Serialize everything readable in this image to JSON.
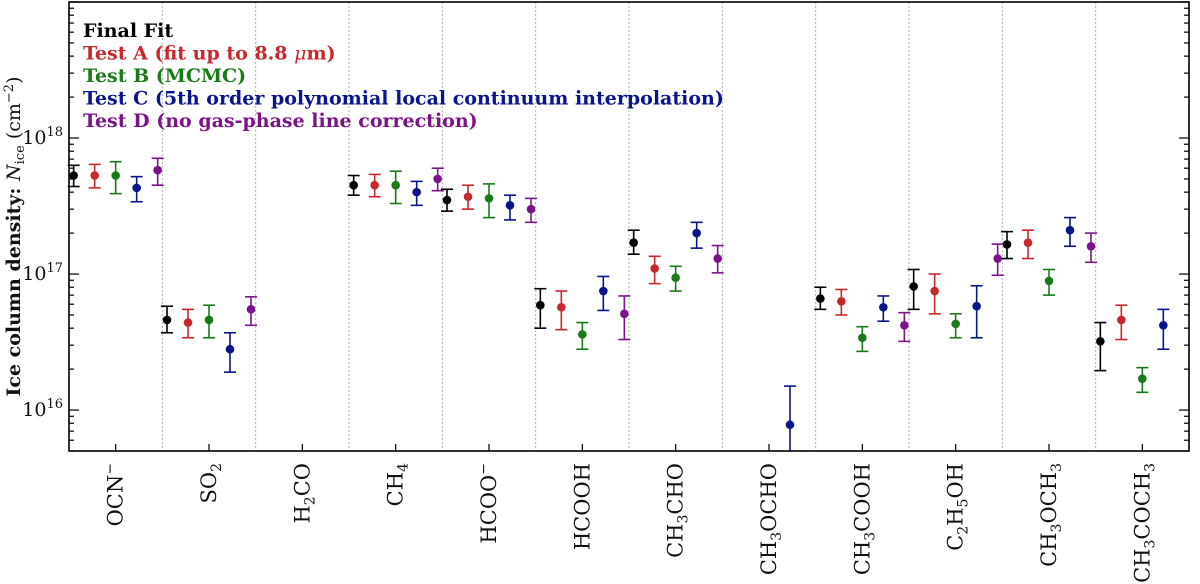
{
  "chart_data": {
    "type": "scatter",
    "yscale": "log",
    "ylim": [
      5000000000000000.0,
      1e+19
    ],
    "yticks": [
      {
        "value": 1e+16,
        "label": "10",
        "exp": "16"
      },
      {
        "value": 1e+17,
        "label": "10",
        "exp": "17"
      },
      {
        "value": 1e+18,
        "label": "10",
        "exp": "18"
      }
    ],
    "ylabel": {
      "main": "Ice column density: ",
      "sym": "N",
      "sub": "ice",
      "unit_pre": " (cm",
      "unit_exp": "−2",
      "unit_post": ")"
    },
    "categories": [
      {
        "parts": [
          {
            "t": "OCN"
          },
          {
            "t": "−",
            "sup": true
          }
        ]
      },
      {
        "parts": [
          {
            "t": "SO"
          },
          {
            "t": "2",
            "sub": true
          }
        ]
      },
      {
        "parts": [
          {
            "t": "H"
          },
          {
            "t": "2",
            "sub": true
          },
          {
            "t": "CO"
          }
        ]
      },
      {
        "parts": [
          {
            "t": "CH"
          },
          {
            "t": "4",
            "sub": true
          }
        ]
      },
      {
        "parts": [
          {
            "t": "HCOO"
          },
          {
            "t": "−",
            "sup": true
          }
        ]
      },
      {
        "parts": [
          {
            "t": "HCOOH"
          }
        ]
      },
      {
        "parts": [
          {
            "t": "CH"
          },
          {
            "t": "3",
            "sub": true
          },
          {
            "t": "CHO"
          }
        ]
      },
      {
        "parts": [
          {
            "t": "CH"
          },
          {
            "t": "3",
            "sub": true
          },
          {
            "t": "OCHO"
          }
        ]
      },
      {
        "parts": [
          {
            "t": "CH"
          },
          {
            "t": "3",
            "sub": true
          },
          {
            "t": "COOH"
          }
        ]
      },
      {
        "parts": [
          {
            "t": "C"
          },
          {
            "t": "2",
            "sub": true
          },
          {
            "t": "H"
          },
          {
            "t": "5",
            "sub": true
          },
          {
            "t": "OH"
          }
        ]
      },
      {
        "parts": [
          {
            "t": "CH"
          },
          {
            "t": "3",
            "sub": true
          },
          {
            "t": "OCH"
          },
          {
            "t": "3",
            "sub": true
          }
        ]
      },
      {
        "parts": [
          {
            "t": "CH"
          },
          {
            "t": "3",
            "sub": true
          },
          {
            "t": "COCH"
          },
          {
            "t": "3",
            "sub": true
          }
        ]
      }
    ],
    "series": [
      {
        "name": "Final Fit",
        "color": "#000000",
        "values": [
          [
            5.3e+17,
            4.4e+17,
            6.3e+17
          ],
          [
            4.6e+16,
            3.7e+16,
            5.8e+16
          ],
          null,
          [
            4.5e+17,
            3.8e+17,
            5.3e+17
          ],
          [
            3.5e+17,
            2.9e+17,
            4.2e+17
          ],
          [
            5.9e+16,
            4e+16,
            7.8e+16
          ],
          [
            1.7e+17,
            1.4e+17,
            2.1e+17
          ],
          null,
          [
            6.6e+16,
            5.5e+16,
            8e+16
          ],
          [
            8.1e+16,
            5.5e+16,
            1.08e+17
          ],
          [
            1.65e+17,
            1.3e+17,
            2.05e+17
          ],
          [
            3.2e+16,
            1.95e+16,
            4.4e+16
          ]
        ]
      },
      {
        "name": "Test A (fit up to 8.8 μm)",
        "color": "#c8282d",
        "values": [
          [
            5.3e+17,
            4.3e+17,
            6.4e+17
          ],
          [
            4.4e+16,
            3.4e+16,
            5.5e+16
          ],
          null,
          [
            4.5e+17,
            3.7e+17,
            5.4e+17
          ],
          [
            3.7e+17,
            3e+17,
            4.5e+17
          ],
          [
            5.7e+16,
            3.9e+16,
            7.5e+16
          ],
          [
            1.1e+17,
            8.5e+16,
            1.35e+17
          ],
          null,
          [
            6.3e+16,
            5e+16,
            7.7e+16
          ],
          [
            7.5e+16,
            5.1e+16,
            1e+17
          ],
          [
            1.7e+17,
            1.3e+17,
            2.1e+17
          ],
          [
            4.6e+16,
            3.3e+16,
            5.9e+16
          ]
        ]
      },
      {
        "name": "Test B (MCMC)",
        "color": "#1a7a1a",
        "values": [
          [
            5.3e+17,
            3.9e+17,
            6.7e+17
          ],
          [
            4.6e+16,
            3.4e+16,
            5.9e+16
          ],
          null,
          [
            4.5e+17,
            3.3e+17,
            5.7e+17
          ],
          [
            3.6e+17,
            2.6e+17,
            4.6e+17
          ],
          [
            3.6e+16,
            2.8e+16,
            4.4e+16
          ],
          [
            9.4e+16,
            7.5e+16,
            1.14e+17
          ],
          null,
          [
            3.4e+16,
            2.7e+16,
            4.1e+16
          ],
          [
            4.3e+16,
            3.4e+16,
            5.1e+16
          ],
          [
            8.9e+16,
            7e+16,
            1.08e+17
          ],
          [
            1.7e+16,
            1.35e+16,
            2.05e+16
          ]
        ]
      },
      {
        "name": "Test C (5th order polynomial local continuum interpolation)",
        "color": "#0a148c",
        "values": [
          [
            4.3e+17,
            3.4e+17,
            5.2e+17
          ],
          [
            2.8e+16,
            1.9e+16,
            3.7e+16
          ],
          null,
          [
            4e+17,
            3.2e+17,
            4.8e+17
          ],
          [
            3.2e+17,
            2.5e+17,
            3.8e+17
          ],
          [
            7.5e+16,
            5.4e+16,
            9.6e+16
          ],
          [
            2e+17,
            1.55e+17,
            2.4e+17
          ],
          [
            7800000000000000.0,
            4000000000000000.0,
            1.5e+16
          ],
          [
            5.7e+16,
            4.5e+16,
            6.9e+16
          ],
          [
            5.8e+16,
            3.4e+16,
            8.2e+16
          ],
          [
            2.1e+17,
            1.6e+17,
            2.6e+17
          ],
          [
            4.2e+16,
            2.8e+16,
            5.5e+16
          ]
        ]
      },
      {
        "name": "Test D (no gas-phase line correction)",
        "color": "#7b1488",
        "values": [
          [
            5.8e+17,
            4.5e+17,
            7.1e+17
          ],
          [
            5.5e+16,
            4.2e+16,
            6.8e+16
          ],
          null,
          [
            5e+17,
            4.1e+17,
            6e+17
          ],
          [
            3e+17,
            2.4e+17,
            3.6e+17
          ],
          [
            5.1e+16,
            3.3e+16,
            6.9e+16
          ],
          [
            1.3e+17,
            1.02e+17,
            1.62e+17
          ],
          null,
          [
            4.2e+16,
            3.2e+16,
            5.2e+16
          ],
          [
            1.3e+17,
            9.8e+16,
            1.66e+17
          ],
          [
            1.6e+17,
            1.22e+17,
            2e+17
          ],
          null
        ]
      }
    ],
    "legend": {
      "placement": "top-left",
      "entries": [
        {
          "text": "Final Fit",
          "color": "#000000"
        },
        {
          "text": "Test A (fit up to 8.8 ",
          "italic": "μ",
          "text2": "m)",
          "color": "#c8282d"
        },
        {
          "text": "Test B (MCMC)",
          "color": "#1a7a1a"
        },
        {
          "text": "Test C (5th order polynomial local continuum interpolation)",
          "color": "#0a148c"
        },
        {
          "text": "Test D (no gas-phase line correction)",
          "color": "#7b1488"
        }
      ]
    },
    "separators": "dotted vertical lines between categories"
  }
}
